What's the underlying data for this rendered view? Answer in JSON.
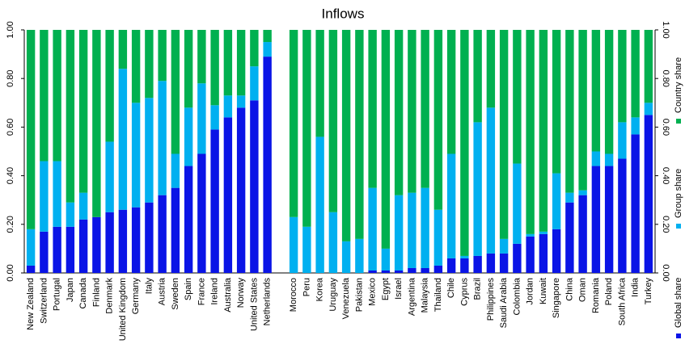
{
  "chart_data": {
    "type": "stacked_bar",
    "title": "Inflows",
    "categories": [
      "New Zealand",
      "Switzerland",
      "Portugal",
      "Japan",
      "Canada",
      "Finland",
      "Denmark",
      "United Kingdom",
      "Germany",
      "Italy",
      "Austria",
      "Sweden",
      "Spain",
      "France",
      "Ireland",
      "Australia",
      "Norway",
      "United States",
      "Netherlands",
      null,
      "Morocco",
      "Peru",
      "Korea",
      "Uruguay",
      "Venezuela",
      "Pakistan",
      "Mexico",
      "Egypt",
      "Israel",
      "Argentina",
      "Malaysia",
      "Thailand",
      "Chile",
      "Cyprus",
      "Brazil",
      "Philippines",
      "Saudi Arabia",
      "Colombia",
      "Jordan",
      "Kuwait",
      "Singapore",
      "China",
      "Oman",
      "Romania",
      "Poland",
      "South Africa",
      "India",
      "Turkey"
    ],
    "series": [
      {
        "name": "Global share",
        "color": "#0a14e6",
        "values": [
          0.03,
          0.17,
          0.19,
          0.19,
          0.22,
          0.23,
          0.25,
          0.26,
          0.27,
          0.29,
          0.32,
          0.35,
          0.44,
          0.49,
          0.59,
          0.64,
          0.68,
          0.71,
          0.89,
          null,
          0,
          0,
          0,
          0,
          0,
          0,
          0.01,
          0.01,
          0.01,
          0.02,
          0.02,
          0.03,
          0.06,
          0.06,
          0.07,
          0.08,
          0.08,
          0.12,
          0.15,
          0.16,
          0.18,
          0.29,
          0.32,
          0.44,
          0.44,
          0.47,
          0.57,
          0.65
        ]
      },
      {
        "name": "Group share",
        "color": "#00b0f0",
        "values": [
          0.15,
          0.29,
          0.27,
          0.1,
          0.11,
          0,
          0.29,
          0.58,
          0.43,
          0.43,
          0.47,
          0.14,
          0.24,
          0.29,
          0.1,
          0.09,
          0.05,
          0.14,
          0.06,
          null,
          0.23,
          0.19,
          0.56,
          0.25,
          0.13,
          0.14,
          0.34,
          0.09,
          0.31,
          0.31,
          0.33,
          0.23,
          0.43,
          0.01,
          0.55,
          0.6,
          0.06,
          0.33,
          0.01,
          0.01,
          0.23,
          0.04,
          0.02,
          0.06,
          0.05,
          0.15,
          0.07,
          0.05
        ]
      },
      {
        "name": "Country share",
        "color": "#00b050",
        "values": [
          0.82,
          0.54,
          0.54,
          0.71,
          0.67,
          0.77,
          0.46,
          0.16,
          0.3,
          0.28,
          0.21,
          0.51,
          0.32,
          0.22,
          0.31,
          0.27,
          0.27,
          0.15,
          0.05,
          null,
          0.77,
          0.81,
          0.44,
          0.75,
          0.87,
          0.86,
          0.65,
          0.9,
          0.68,
          0.67,
          0.65,
          0.74,
          0.51,
          0.93,
          0.38,
          0.32,
          0.86,
          0.55,
          0.84,
          0.83,
          0.59,
          0.67,
          0.66,
          0.5,
          0.51,
          0.38,
          0.36,
          0.3
        ]
      }
    ],
    "ylim": [
      0,
      1
    ],
    "yticks": [
      {
        "value": 0,
        "label": "0.00"
      },
      {
        "value": 0.2,
        "label": "0.20"
      },
      {
        "value": 0.4,
        "label": "0.40"
      },
      {
        "value": 0.6,
        "label": "0.60"
      },
      {
        "value": 0.8,
        "label": "0.80"
      },
      {
        "value": 1,
        "label": "1.00"
      }
    ]
  }
}
